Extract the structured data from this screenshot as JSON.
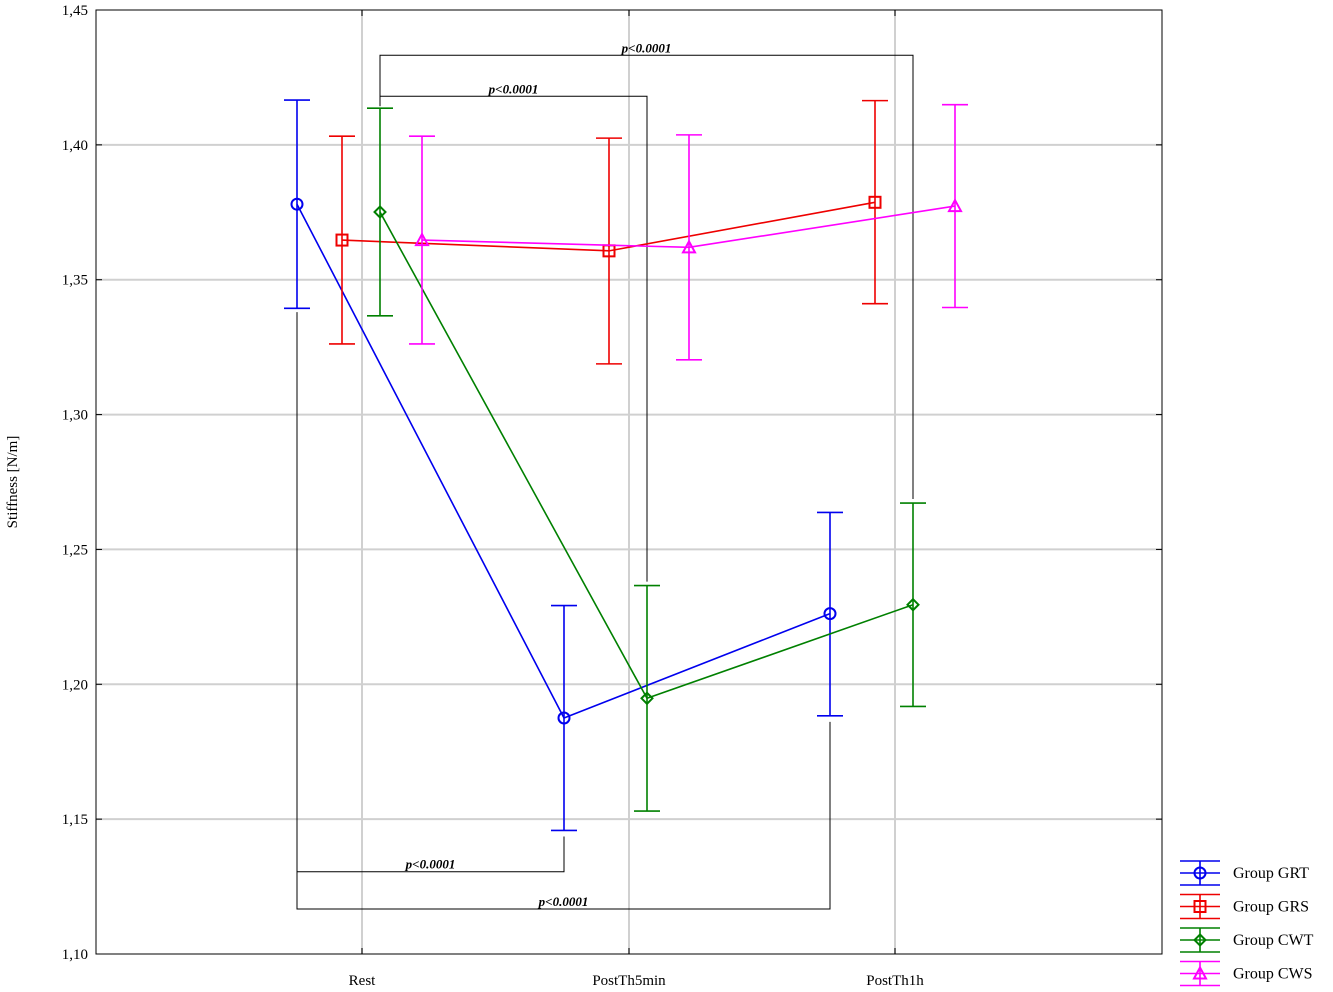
{
  "chart_data": {
    "type": "line",
    "ylabel": "Stiffness [N/m]",
    "xlabel": "",
    "ylim": [
      1.1,
      1.45
    ],
    "yticks": [
      1.1,
      1.15,
      1.2,
      1.25,
      1.3,
      1.35,
      1.4,
      1.45
    ],
    "ytick_labels": [
      "1,10",
      "1,15",
      "1,20",
      "1,25",
      "1,30",
      "1,35",
      "1,40",
      "1,45"
    ],
    "categories": [
      "Rest",
      "PostTh5min",
      "PostTh1h"
    ],
    "grid": true,
    "legend_position": "bottom-right",
    "series": [
      {
        "name": "Group GRT",
        "color": "#0000ee",
        "marker": "circle",
        "values": [
          1.378,
          1.1875,
          1.2262
        ],
        "lower": [
          1.3394,
          1.1458,
          1.1883
        ],
        "upper": [
          1.4166,
          1.2292,
          1.2637
        ]
      },
      {
        "name": "Group GRS",
        "color": "#ee0000",
        "marker": "square",
        "values": [
          1.3647,
          1.3607,
          1.3787
        ],
        "lower": [
          1.3262,
          1.3188,
          1.3411
        ],
        "upper": [
          1.4032,
          1.4025,
          1.4164
        ]
      },
      {
        "name": "Group CWT",
        "color": "#008000",
        "marker": "diamond",
        "values": [
          1.3751,
          1.1948,
          1.2295
        ],
        "lower": [
          1.3366,
          1.153,
          1.1918
        ],
        "upper": [
          1.4136,
          1.2366,
          1.2672
        ]
      },
      {
        "name": "Group CWS",
        "color": "#ff00ff",
        "marker": "triangle",
        "values": [
          1.3647,
          1.362,
          1.3773
        ],
        "lower": [
          1.3262,
          1.3203,
          1.3397
        ],
        "upper": [
          1.4032,
          1.4037,
          1.4149
        ]
      }
    ],
    "annotations": [
      {
        "text": "p<0.0001",
        "series": "Group CWT",
        "from": "Rest",
        "to": "PostTh1h",
        "side": "top",
        "level": 1.4332
      },
      {
        "text": "p<0.0001",
        "series": "Group CWT",
        "from": "Rest",
        "to": "PostTh5min",
        "side": "top",
        "level": 1.418
      },
      {
        "text": "p<0.0001",
        "series": "Group GRT",
        "from": "Rest",
        "to": "PostTh5min",
        "side": "bottom",
        "level": 1.1305
      },
      {
        "text": "p<0.0001",
        "series": "Group GRT",
        "from": "Rest",
        "to": "PostTh1h",
        "side": "bottom",
        "level": 1.1167
      }
    ]
  }
}
